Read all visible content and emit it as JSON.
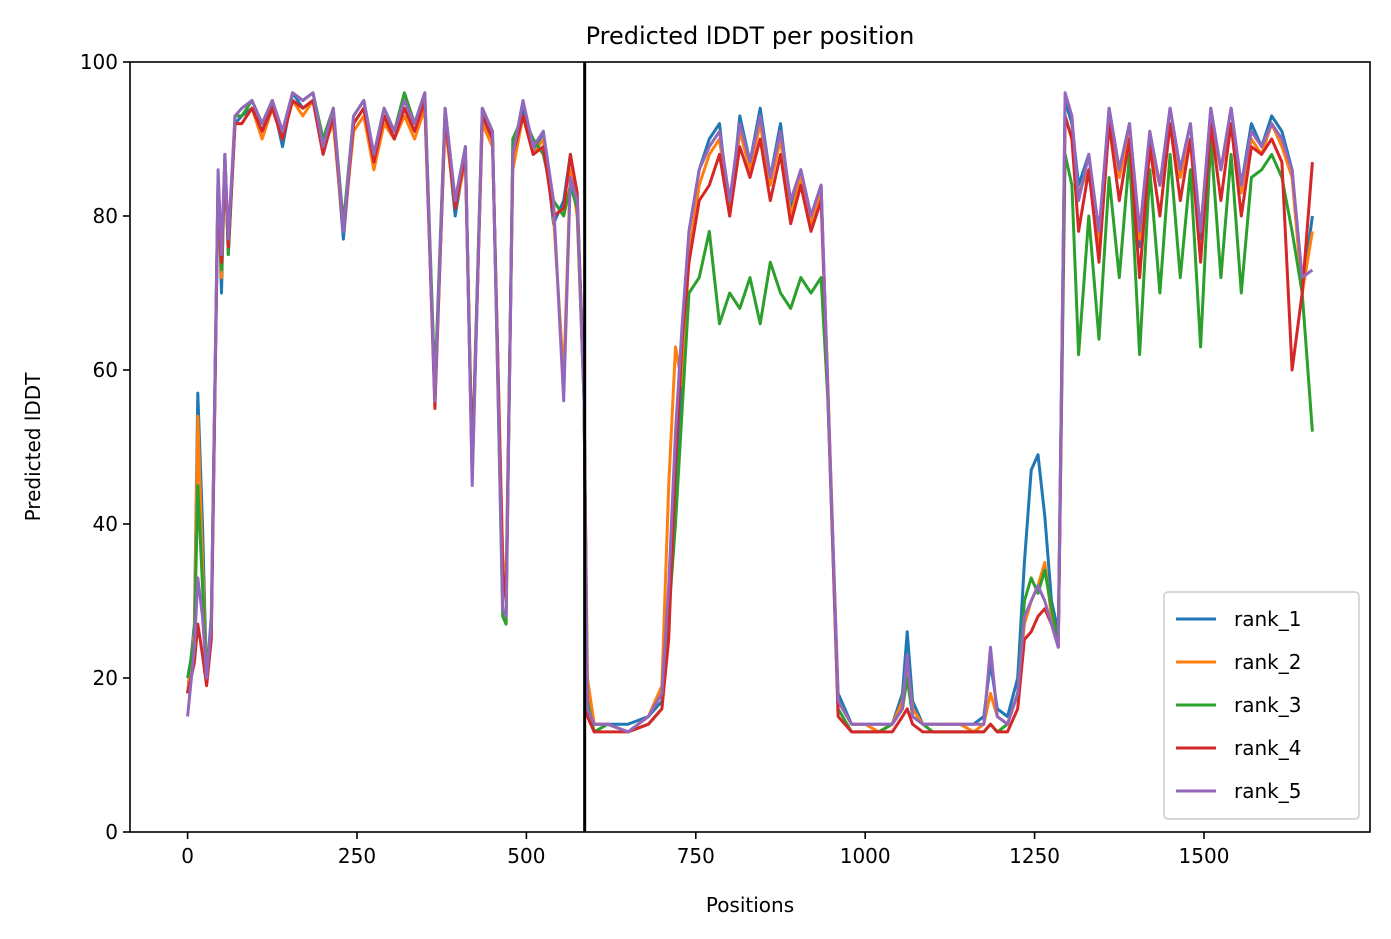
{
  "chart_data": {
    "type": "line",
    "title": "Predicted lDDT per position",
    "xlabel": "Positions",
    "ylabel": "Predicted lDDT",
    "xlim": [
      -85,
      1745
    ],
    "ylim": [
      0,
      100
    ],
    "xticks": [
      0,
      250,
      500,
      750,
      1000,
      1250,
      1500
    ],
    "yticks": [
      0,
      20,
      40,
      60,
      80,
      100
    ],
    "grid": false,
    "legend_position": "bottom-right",
    "vline": {
      "x": 586,
      "color": "#000000"
    },
    "series": [
      {
        "name": "rank_1",
        "color": "#1f77b4",
        "x": [
          0,
          10,
          15,
          22,
          28,
          35,
          45,
          50,
          55,
          60,
          70,
          80,
          95,
          110,
          125,
          140,
          155,
          170,
          185,
          200,
          215,
          230,
          245,
          260,
          275,
          290,
          305,
          320,
          335,
          350,
          365,
          380,
          395,
          410,
          420,
          435,
          450,
          465,
          470,
          480,
          495,
          510,
          525,
          540,
          555,
          565,
          575,
          585,
          590,
          600,
          620,
          650,
          680,
          700,
          710,
          720,
          730,
          740,
          755,
          770,
          785,
          800,
          815,
          830,
          845,
          860,
          875,
          890,
          905,
          920,
          935,
          945,
          960,
          980,
          1000,
          1020,
          1040,
          1055,
          1062,
          1070,
          1085,
          1100,
          1120,
          1140,
          1160,
          1175,
          1185,
          1195,
          1210,
          1225,
          1235,
          1245,
          1255,
          1265,
          1275,
          1285,
          1295,
          1305,
          1315,
          1330,
          1345,
          1360,
          1375,
          1390,
          1405,
          1420,
          1435,
          1450,
          1465,
          1480,
          1495,
          1510,
          1525,
          1540,
          1555,
          1570,
          1585,
          1600,
          1615,
          1630,
          1645,
          1660
        ],
        "y": [
          18,
          27,
          57,
          40,
          20,
          28,
          85,
          70,
          88,
          75,
          92,
          93,
          94,
          91,
          95,
          89,
          96,
          94,
          95,
          88,
          93,
          77,
          92,
          94,
          87,
          93,
          90,
          94,
          91,
          95,
          56,
          93,
          80,
          88,
          46,
          93,
          90,
          35,
          32,
          87,
          94,
          88,
          91,
          79,
          82,
          88,
          82,
          58,
          18,
          14,
          14,
          14,
          15,
          17,
          30,
          43,
          60,
          78,
          86,
          90,
          92,
          80,
          93,
          87,
          94,
          85,
          92,
          81,
          86,
          80,
          84,
          57,
          18,
          14,
          14,
          14,
          14,
          18,
          26,
          17,
          14,
          14,
          14,
          14,
          14,
          15,
          22,
          16,
          15,
          20,
          35,
          47,
          49,
          41,
          30,
          26,
          95,
          92,
          84,
          88,
          76,
          94,
          86,
          92,
          76,
          90,
          84,
          94,
          86,
          92,
          77,
          94,
          86,
          94,
          84,
          92,
          89,
          93,
          91,
          86,
          70,
          80
        ]
      },
      {
        "name": "rank_2",
        "color": "#ff7f0e",
        "x": [
          0,
          10,
          15,
          22,
          28,
          35,
          45,
          50,
          55,
          60,
          70,
          80,
          95,
          110,
          125,
          140,
          155,
          170,
          185,
          200,
          215,
          230,
          245,
          260,
          275,
          290,
          305,
          320,
          335,
          350,
          365,
          380,
          395,
          410,
          420,
          435,
          450,
          465,
          470,
          480,
          495,
          510,
          525,
          540,
          555,
          565,
          575,
          585,
          590,
          600,
          620,
          650,
          680,
          700,
          710,
          720,
          730,
          740,
          755,
          770,
          785,
          800,
          815,
          830,
          845,
          860,
          875,
          890,
          905,
          920,
          935,
          945,
          960,
          980,
          1000,
          1020,
          1040,
          1055,
          1062,
          1070,
          1085,
          1100,
          1120,
          1140,
          1160,
          1175,
          1185,
          1195,
          1210,
          1225,
          1235,
          1245,
          1255,
          1265,
          1275,
          1285,
          1295,
          1305,
          1315,
          1330,
          1345,
          1360,
          1375,
          1390,
          1405,
          1420,
          1435,
          1450,
          1465,
          1480,
          1495,
          1510,
          1525,
          1540,
          1555,
          1570,
          1585,
          1600,
          1615,
          1630,
          1645,
          1660
        ],
        "y": [
          18,
          26,
          54,
          35,
          20,
          27,
          84,
          72,
          87,
          76,
          92,
          92,
          94,
          90,
          94,
          90,
          95,
          93,
          95,
          89,
          92,
          78,
          91,
          93,
          86,
          92,
          90,
          93,
          90,
          94,
          57,
          92,
          81,
          87,
          47,
          92,
          89,
          36,
          31,
          86,
          93,
          88,
          90,
          80,
          59,
          86,
          80,
          57,
          20,
          14,
          14,
          13,
          15,
          19,
          45,
          63,
          58,
          75,
          84,
          88,
          90,
          80,
          91,
          86,
          92,
          84,
          90,
          80,
          85,
          79,
          83,
          58,
          17,
          14,
          14,
          13,
          14,
          17,
          22,
          16,
          14,
          14,
          14,
          14,
          13,
          14,
          18,
          15,
          14,
          18,
          27,
          30,
          32,
          35,
          28,
          25,
          93,
          90,
          83,
          86,
          76,
          92,
          85,
          91,
          77,
          89,
          84,
          92,
          85,
          90,
          78,
          92,
          86,
          92,
          83,
          90,
          88,
          92,
          89,
          85,
          70,
          78
        ]
      },
      {
        "name": "rank_3",
        "color": "#2ca02c",
        "x": [
          0,
          10,
          15,
          22,
          28,
          35,
          45,
          50,
          55,
          60,
          70,
          80,
          95,
          110,
          125,
          140,
          155,
          170,
          185,
          200,
          215,
          230,
          245,
          260,
          275,
          290,
          305,
          320,
          335,
          350,
          365,
          380,
          395,
          410,
          420,
          435,
          450,
          465,
          470,
          480,
          495,
          510,
          525,
          540,
          555,
          565,
          575,
          585,
          590,
          600,
          620,
          650,
          680,
          700,
          710,
          720,
          730,
          740,
          755,
          770,
          785,
          800,
          815,
          830,
          845,
          860,
          875,
          890,
          905,
          920,
          935,
          945,
          960,
          980,
          1000,
          1020,
          1040,
          1055,
          1062,
          1070,
          1085,
          1100,
          1120,
          1140,
          1160,
          1175,
          1185,
          1195,
          1210,
          1225,
          1235,
          1245,
          1255,
          1265,
          1275,
          1285,
          1295,
          1305,
          1315,
          1330,
          1345,
          1360,
          1375,
          1390,
          1405,
          1420,
          1435,
          1450,
          1465,
          1480,
          1495,
          1510,
          1525,
          1540,
          1555,
          1570,
          1585,
          1600,
          1615,
          1630,
          1645,
          1660
        ],
        "y": [
          20,
          25,
          45,
          32,
          20,
          26,
          85,
          73,
          88,
          75,
          93,
          93,
          95,
          92,
          95,
          91,
          96,
          95,
          96,
          90,
          94,
          79,
          93,
          95,
          88,
          94,
          91,
          96,
          92,
          96,
          58,
          94,
          82,
          89,
          48,
          94,
          91,
          28,
          27,
          90,
          93,
          90,
          88,
          82,
          80,
          84,
          81,
          56,
          17,
          13,
          14,
          13,
          14,
          16,
          28,
          40,
          55,
          70,
          72,
          78,
          66,
          70,
          68,
          72,
          66,
          74,
          70,
          68,
          72,
          70,
          72,
          56,
          16,
          13,
          13,
          13,
          14,
          16,
          20,
          15,
          14,
          13,
          13,
          13,
          13,
          13,
          14,
          13,
          14,
          18,
          30,
          33,
          31,
          34,
          29,
          25,
          88,
          84,
          62,
          80,
          64,
          85,
          72,
          88,
          62,
          86,
          70,
          88,
          72,
          86,
          63,
          90,
          72,
          88,
          70,
          85,
          86,
          88,
          85,
          78,
          70,
          52
        ]
      },
      {
        "name": "rank_4",
        "color": "#d62728",
        "x": [
          0,
          10,
          15,
          22,
          28,
          35,
          45,
          50,
          55,
          60,
          70,
          80,
          95,
          110,
          125,
          140,
          155,
          170,
          185,
          200,
          215,
          230,
          245,
          260,
          275,
          290,
          305,
          320,
          335,
          350,
          365,
          380,
          395,
          410,
          420,
          435,
          450,
          465,
          470,
          480,
          495,
          510,
          525,
          540,
          555,
          565,
          575,
          585,
          590,
          600,
          620,
          650,
          680,
          700,
          710,
          720,
          730,
          740,
          755,
          770,
          785,
          800,
          815,
          830,
          845,
          860,
          875,
          890,
          905,
          920,
          935,
          945,
          960,
          980,
          1000,
          1020,
          1040,
          1055,
          1062,
          1070,
          1085,
          1100,
          1120,
          1140,
          1160,
          1175,
          1185,
          1195,
          1210,
          1225,
          1235,
          1245,
          1255,
          1265,
          1275,
          1285,
          1295,
          1305,
          1315,
          1330,
          1345,
          1360,
          1375,
          1390,
          1405,
          1420,
          1435,
          1450,
          1465,
          1480,
          1495,
          1510,
          1525,
          1540,
          1555,
          1570,
          1585,
          1600,
          1615,
          1630,
          1645,
          1660
        ],
        "y": [
          18,
          22,
          27,
          23,
          19,
          25,
          84,
          74,
          87,
          76,
          92,
          92,
          94,
          91,
          94,
          90,
          95,
          94,
          95,
          88,
          93,
          78,
          92,
          94,
          87,
          93,
          90,
          94,
          91,
          95,
          55,
          93,
          81,
          88,
          47,
          93,
          90,
          34,
          30,
          88,
          93,
          88,
          89,
          80,
          81,
          88,
          83,
          57,
          15,
          13,
          13,
          13,
          14,
          16,
          25,
          48,
          64,
          74,
          82,
          84,
          88,
          80,
          89,
          85,
          90,
          82,
          88,
          79,
          84,
          78,
          82,
          57,
          15,
          13,
          13,
          13,
          13,
          15,
          16,
          14,
          13,
          13,
          13,
          13,
          13,
          13,
          14,
          13,
          13,
          16,
          25,
          26,
          28,
          29,
          27,
          24,
          93,
          90,
          78,
          86,
          74,
          92,
          82,
          90,
          72,
          89,
          80,
          92,
          82,
          90,
          74,
          92,
          82,
          92,
          80,
          89,
          88,
          90,
          87,
          60,
          70,
          87
        ]
      },
      {
        "name": "rank_5",
        "color": "#9467bd",
        "x": [
          0,
          10,
          15,
          22,
          28,
          35,
          45,
          50,
          55,
          60,
          70,
          80,
          95,
          110,
          125,
          140,
          155,
          170,
          185,
          200,
          215,
          230,
          245,
          260,
          275,
          290,
          305,
          320,
          335,
          350,
          365,
          380,
          395,
          410,
          420,
          435,
          450,
          465,
          470,
          480,
          495,
          510,
          525,
          540,
          555,
          565,
          575,
          585,
          590,
          600,
          620,
          650,
          680,
          700,
          710,
          720,
          730,
          740,
          755,
          770,
          785,
          800,
          815,
          830,
          845,
          860,
          875,
          890,
          905,
          920,
          935,
          945,
          960,
          980,
          1000,
          1020,
          1040,
          1055,
          1062,
          1070,
          1085,
          1100,
          1120,
          1140,
          1160,
          1175,
          1185,
          1195,
          1210,
          1225,
          1235,
          1245,
          1255,
          1265,
          1275,
          1285,
          1295,
          1305,
          1315,
          1330,
          1345,
          1360,
          1375,
          1390,
          1405,
          1420,
          1435,
          1450,
          1465,
          1480,
          1495,
          1510,
          1525,
          1540,
          1555,
          1570,
          1585,
          1600,
          1615,
          1630,
          1645,
          1660
        ],
        "y": [
          15,
          24,
          33,
          28,
          20,
          27,
          86,
          75,
          88,
          77,
          93,
          94,
          95,
          92,
          95,
          91,
          96,
          95,
          96,
          89,
          94,
          78,
          93,
          95,
          88,
          94,
          91,
          95,
          92,
          96,
          56,
          94,
          82,
          89,
          45,
          94,
          91,
          29,
          28,
          88,
          95,
          89,
          91,
          82,
          56,
          85,
          82,
          56,
          16,
          14,
          14,
          13,
          15,
          18,
          32,
          52,
          66,
          78,
          86,
          89,
          91,
          82,
          92,
          87,
          93,
          85,
          91,
          82,
          86,
          80,
          84,
          57,
          17,
          14,
          14,
          14,
          14,
          16,
          23,
          15,
          14,
          14,
          14,
          14,
          14,
          14,
          24,
          15,
          14,
          18,
          28,
          30,
          32,
          30,
          27,
          24,
          96,
          93,
          82,
          88,
          78,
          94,
          86,
          92,
          78,
          91,
          84,
          94,
          86,
          92,
          78,
          94,
          86,
          94,
          84,
          91,
          89,
          92,
          90,
          86,
          72,
          73
        ]
      }
    ]
  }
}
